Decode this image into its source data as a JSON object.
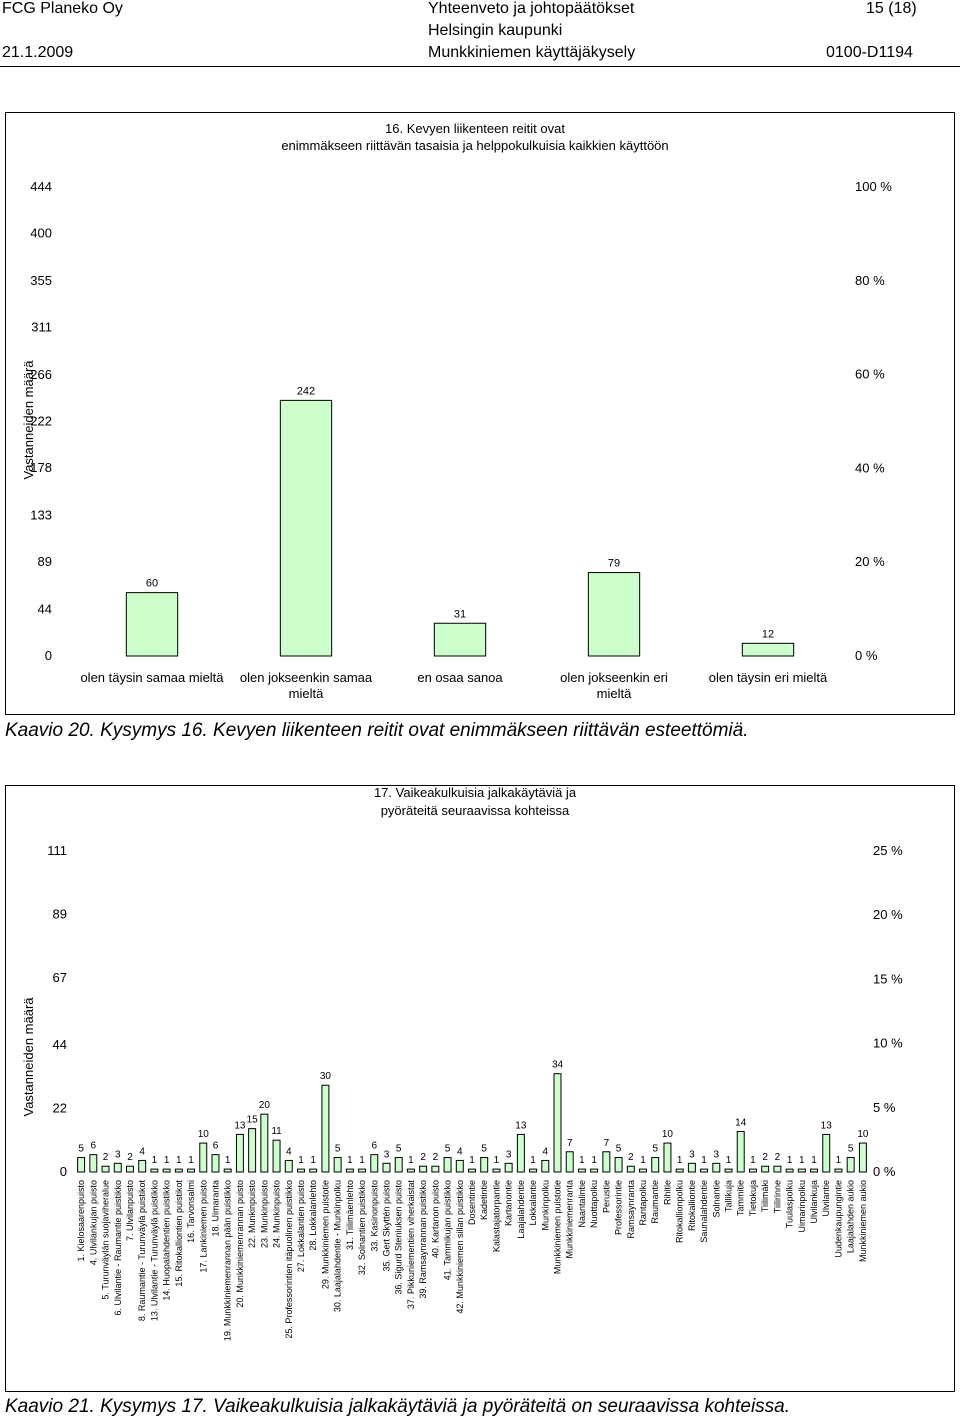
{
  "header": {
    "company": "FCG Planeko Oy",
    "doc_title": "Yhteenveto ja johtopäätökset",
    "page": "15 (18)",
    "client": "Helsingin kaupunki",
    "date": "21.1.2009",
    "project": "Munkkiniemen käyttäjäkysely",
    "code": "0100-D1194"
  },
  "captions": {
    "fig20": "Kaavio 20. Kysymys 16. Kevyen liikenteen reitit ovat enimmäkseen riittävän esteettömiä.",
    "fig21": "Kaavio 21. Kysymys 17. Vaikeakulkuisia jalkakäytäviä ja pyöräteitä on seuraavissa kohteissa."
  },
  "colors": {
    "bar_fill": "#ccffcc",
    "bar_stroke": "#000000"
  },
  "chart_data": [
    {
      "type": "bar",
      "title": [
        "16. Kevyen liikenteen reitit ovat",
        "enimmäkseen riittävän tasaisia ja helppokulkuisia kaikkien käyttöön"
      ],
      "ylabel": "Vastanneiden määrä",
      "ylim": [
        0,
        444
      ],
      "y_ticks": [
        0,
        44,
        89,
        133,
        178,
        222,
        266,
        311,
        355,
        400,
        444
      ],
      "y2_ticks": [
        "0 %",
        "20 %",
        "40 %",
        "60 %",
        "80 %",
        "100 %"
      ],
      "y2_max": 100,
      "categories": [
        "olen täysin samaa mieltä",
        "olen jokseenkin samaa mieltä",
        "en osaa sanoa",
        "olen jokseenkin eri mieltä",
        "olen täysin eri mieltä"
      ],
      "values": [
        60,
        242,
        31,
        79,
        12
      ],
      "legend": "none",
      "grid": false
    },
    {
      "type": "bar",
      "title": [
        "17. Vaikeakulkuisia jalkakäytäviä ja",
        "pyöräteitä seuraavissa kohteissa"
      ],
      "ylabel": "Vastanneiden määrä",
      "ylim": [
        0,
        111
      ],
      "y_ticks": [
        0,
        22,
        44,
        67,
        89,
        111
      ],
      "y2_ticks": [
        "0 %",
        "5 %",
        "10 %",
        "15 %",
        "20 %",
        "25 %"
      ],
      "y2_max": 25,
      "categories": [
        "1. Kielosaarenpuisto",
        "4. Ulvilankujan puisto",
        "5. Turunväylän suojaviheralue",
        "6. Ulvilantie - Raumantie puistikko",
        "7. Ulvilanpuisto",
        "8. Raumantie - Turunväylä puistikot",
        "13. Ulvilantie - Turunväylä puistikko",
        "14. Huopalahdentien puistikko",
        "15. Ritokalliontien puistikot",
        "16. Tarvonsalmi",
        "17. Lankiniemen puisto",
        "18. Uimaranta",
        "19. Munkkiniemenrannan pään puistikko",
        "20. Munkkiniemenrannan puisto",
        "22. Munkinpuisto",
        "23. Munkinpuisto",
        "24. Munkinpuisto",
        "25. Professorintien itäpuolinen puistikko",
        "27. Lokkalantien puisto",
        "28. Lokkalanlehto",
        "29. Munkkiniemen puistotie",
        "30. Laajalahdentie - Munkinpolku",
        "31. Tiilimäenlehto",
        "32. Solnantien puistikko",
        "33. Kasinonpuisto",
        "35. Gert Skyttén puisto",
        "36. Sigurd Steniuksen puisto",
        "37. Pikkuniementien viherkaistat",
        "39. Ramsaynrannan puistikko",
        "40. Kartanon puisto",
        "41. Tammikujan puistikko",
        "42. Munkkiniemen sillan puistikko",
        "Dosentintie",
        "Kadetintie",
        "Kalastajatorpantie",
        "Kartanontie",
        "Laajalahdentie",
        "Lokkalantie",
        "Munkinpolku",
        "Munkkiniemen puistotie",
        "Munkkiniemenranta",
        "Naantalintie",
        "Nuottapolku",
        "Perustie",
        "Professorintie",
        "Ramsaynranta",
        "Rantapolku",
        "Raumantie",
        "Rihitie",
        "Ritokallionpolku",
        "Ritokalliontie",
        "Saunalahdentie",
        "Solnantie",
        "Tallikuja",
        "Tammitie",
        "Tietokuja",
        "Tiilimäki",
        "Tiilirinne",
        "Tuulaspolku",
        "Uimarinpolku",
        "Ulvilankuja",
        "Ulvilantie",
        "Uudenkaupungintie",
        "Laajalahden aukio",
        "Munkkiniemen aukio"
      ],
      "values": [
        5,
        6,
        2,
        3,
        2,
        4,
        1,
        1,
        1,
        1,
        10,
        6,
        1,
        13,
        15,
        20,
        11,
        4,
        1,
        1,
        30,
        5,
        1,
        1,
        6,
        3,
        5,
        1,
        2,
        2,
        5,
        4,
        1,
        5,
        1,
        3,
        13,
        1,
        4,
        34,
        7,
        1,
        1,
        7,
        5,
        2,
        1,
        5,
        10,
        1,
        3,
        1,
        3,
        1,
        14,
        1,
        2,
        2,
        1,
        1,
        1,
        13,
        1,
        5,
        10
      ],
      "legend": "none",
      "grid": false
    }
  ]
}
